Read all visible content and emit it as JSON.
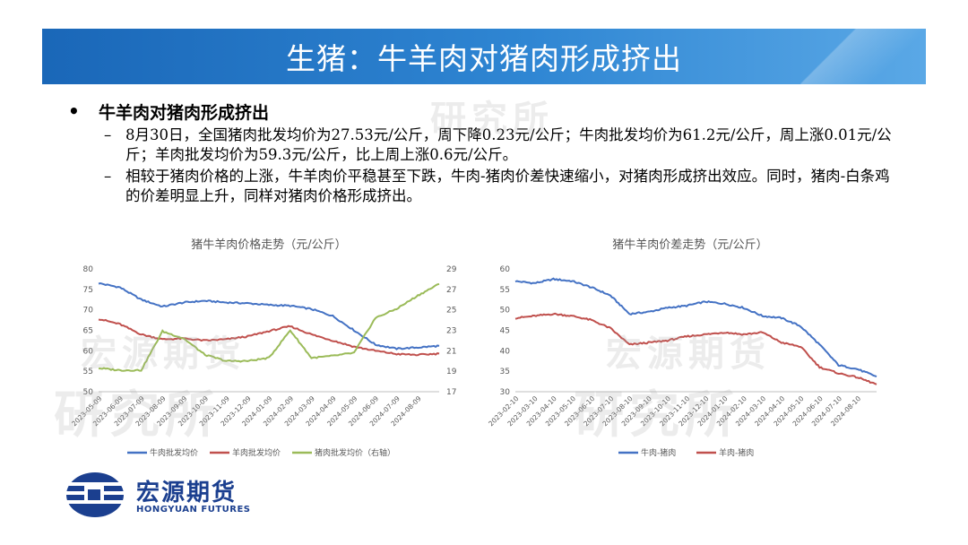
{
  "title": "生猪：牛羊肉对猪肉形成挤出",
  "bullet": {
    "marker": "•",
    "text": "牛羊肉对猪肉形成挤出",
    "subs": [
      "8月30日，全国猪肉批发均价为27.53元/公斤，周下降0.23元/公斤；牛肉批发均价为61.2元/公斤，周上涨0.01元/公斤；羊肉批发均价为59.3元/公斤，比上周上涨0.6元/公斤。",
      "相较于猪肉价格的上涨，牛羊肉价平稳甚至下跌，牛肉-猪肉价差快速缩小，对猪肉形成挤出效应。同时，猪肉-白条鸡的价差明显上升，同样对猪肉价格形成挤出。"
    ]
  },
  "watermarks": [
    "宏源期货",
    "研究所"
  ],
  "logo": {
    "cn": "宏源期货",
    "en": "HONGYUAN FUTURES"
  },
  "colors": {
    "blue": "#4472c4",
    "red": "#c0504d",
    "green": "#9bbb59"
  },
  "chart_data": [
    {
      "type": "line",
      "title": "猪牛羊肉价格走势（元/公斤）",
      "x": [
        "2023-05-09",
        "2023-06-09",
        "2023-07-09",
        "2023-08-09",
        "2023-09-09",
        "2023-10-09",
        "2023-11-09",
        "2023-12-09",
        "2024-01-09",
        "2024-02-09",
        "2024-03-09",
        "2024-04-09",
        "2024-05-09",
        "2024-06-09",
        "2024-07-09",
        "2024-08-09",
        "2024-08-30"
      ],
      "y_left": {
        "range": [
          50,
          80
        ],
        "ticks": [
          "50",
          "55",
          "60",
          "65",
          "70",
          "75",
          "80"
        ]
      },
      "y_right": {
        "range": [
          17,
          29
        ],
        "ticks": [
          "17",
          "19",
          "21",
          "23",
          "25",
          "27",
          "29"
        ]
      },
      "series": [
        {
          "name": "牛肉批发均价",
          "color": "#4472c4",
          "axis": "left",
          "values": [
            76.5,
            75.5,
            72.5,
            70.8,
            71.8,
            72.2,
            71.8,
            71.6,
            71.2,
            71.0,
            70.2,
            68.5,
            65.0,
            61.5,
            60.5,
            60.8,
            61.2
          ]
        },
        {
          "name": "羊肉批发均价",
          "color": "#c0504d",
          "axis": "left",
          "values": [
            67.8,
            66.5,
            64.0,
            62.8,
            63.0,
            62.5,
            62.8,
            63.5,
            64.8,
            66.0,
            64.0,
            62.5,
            61.0,
            60.0,
            59.2,
            59.0,
            59.3
          ]
        },
        {
          "name": "猪肉批发均价（右轴）",
          "color": "#9bbb59",
          "axis": "right",
          "values": [
            19.3,
            19.1,
            19.1,
            22.9,
            22.2,
            20.6,
            20.0,
            20.0,
            20.3,
            23.0,
            20.3,
            20.5,
            20.8,
            24.2,
            25.1,
            26.4,
            27.53
          ]
        }
      ],
      "legend_position": "bottom"
    },
    {
      "type": "line",
      "title": "猪牛羊肉价差走势（元/公斤）",
      "x": [
        "2023-02-10",
        "2023-03-10",
        "2023-04-10",
        "2023-05-10",
        "2023-06-10",
        "2023-07-10",
        "2023-08-10",
        "2023-09-10",
        "2023-10-10",
        "2023-11-10",
        "2023-12-10",
        "2024-01-10",
        "2024-02-10",
        "2024-03-10",
        "2024-04-10",
        "2024-05-10",
        "2024-06-10",
        "2024-07-10",
        "2024-08-10",
        "2024-08-30"
      ],
      "y": {
        "range": [
          30,
          60
        ],
        "ticks": [
          "30",
          "35",
          "40",
          "45",
          "50",
          "55",
          "60"
        ]
      },
      "series": [
        {
          "name": "牛肉-猪肉",
          "color": "#4472c4",
          "values": [
            57.0,
            56.5,
            57.5,
            57.0,
            55.5,
            53.5,
            49.0,
            49.5,
            50.5,
            51.0,
            52.0,
            51.5,
            50.5,
            48.5,
            48.0,
            46.0,
            41.5,
            36.5,
            35.5,
            33.7
          ]
        },
        {
          "name": "羊肉-猪肉",
          "color": "#c0504d",
          "values": [
            48.0,
            48.5,
            49.0,
            48.5,
            47.5,
            45.5,
            41.5,
            42.0,
            42.5,
            43.5,
            44.0,
            44.5,
            44.0,
            44.5,
            42.0,
            41.0,
            36.0,
            34.5,
            33.5,
            31.8
          ]
        }
      ],
      "legend_position": "bottom"
    }
  ]
}
